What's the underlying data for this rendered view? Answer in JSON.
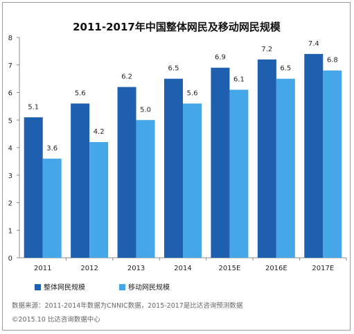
{
  "chart_data": {
    "type": "bar",
    "title": "2011-2017年中国整体网民及移动网民规模",
    "categories": [
      "2011",
      "2012",
      "2013",
      "2014",
      "2015E",
      "2016E",
      "2017E"
    ],
    "series": [
      {
        "name": "整体网民规模",
        "color": "#1f5fb0",
        "values": [
          5.1,
          5.6,
          6.2,
          6.5,
          6.9,
          7.2,
          7.4
        ]
      },
      {
        "name": "移动网民规模",
        "color": "#45a6e8",
        "values": [
          3.6,
          4.2,
          5.0,
          5.6,
          6.1,
          6.5,
          6.8
        ]
      }
    ],
    "ylim": [
      0,
      8
    ],
    "yticks": [
      0,
      1,
      2,
      3,
      4,
      5,
      6,
      7,
      8
    ],
    "legend_position": "bottom-left",
    "grid": false
  },
  "footnotes": {
    "source": "数据来源：2011-2014年数据为CNNIC数据，2015-2017是比达咨询预测数据",
    "copyright": "©2015.10  比达咨询数据中心"
  }
}
